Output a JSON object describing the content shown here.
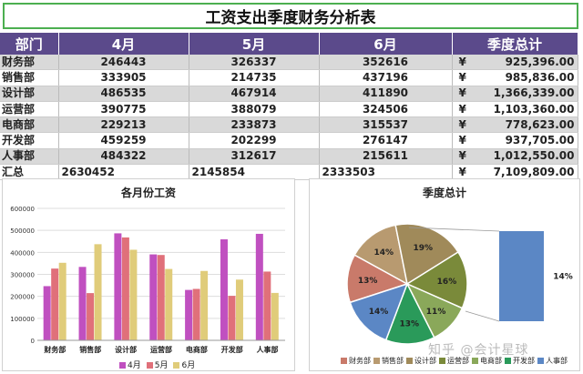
{
  "title": "工资支出季度财务分析表",
  "table": {
    "headers": [
      "部门",
      "4月",
      "5月",
      "6月",
      "季度总计"
    ],
    "currency_symbol": "¥",
    "rows": [
      {
        "dept": "财务部",
        "m4": "246443",
        "m5": "326337",
        "m6": "352616",
        "total": "925,396.00"
      },
      {
        "dept": "销售部",
        "m4": "333905",
        "m5": "214735",
        "m6": "437196",
        "total": "985,836.00"
      },
      {
        "dept": "设计部",
        "m4": "486535",
        "m5": "467914",
        "m6": "411890",
        "total": "1,366,339.00"
      },
      {
        "dept": "运营部",
        "m4": "390775",
        "m5": "388079",
        "m6": "324506",
        "total": "1,103,360.00"
      },
      {
        "dept": "电商部",
        "m4": "229213",
        "m5": "233873",
        "m6": "315537",
        "total": "778,623.00"
      },
      {
        "dept": "开发部",
        "m4": "459259",
        "m5": "202299",
        "m6": "276147",
        "total": "937,705.00"
      },
      {
        "dept": "人事部",
        "m4": "484322",
        "m5": "312617",
        "m6": "215611",
        "total": "1,012,550.00"
      }
    ],
    "summary": {
      "dept": "汇总",
      "m4": "2630452",
      "m5": "2145854",
      "m6": "2333503",
      "total": "7,109,809.00"
    }
  },
  "colors": {
    "header_bg": "#5b4a8b",
    "april": "#c050c0",
    "may": "#e0707a",
    "june": "#e0cc7a"
  },
  "watermark": "知乎 @会计星球",
  "chart_data": [
    {
      "type": "bar",
      "title": "各月份工资",
      "categories": [
        "财务部",
        "销售部",
        "设计部",
        "运营部",
        "电商部",
        "开发部",
        "人事部"
      ],
      "series": [
        {
          "name": "4月",
          "values": [
            246443,
            333905,
            486535,
            390775,
            229213,
            459259,
            484322
          ]
        },
        {
          "name": "5月",
          "values": [
            326337,
            214735,
            467914,
            388079,
            233873,
            202299,
            312617
          ]
        },
        {
          "name": "6月",
          "values": [
            352616,
            437196,
            411890,
            324506,
            315537,
            276147,
            215611
          ]
        }
      ],
      "ylim": [
        0,
        600000
      ],
      "yticks": [
        "0",
        "100000",
        "200000",
        "300000",
        "400000",
        "500000",
        "600000"
      ],
      "grid": true,
      "legend": "bottom"
    },
    {
      "type": "pie",
      "title": "季度总计",
      "labels": [
        "财务部",
        "销售部",
        "设计部",
        "运营部",
        "电商部",
        "开发部",
        "人事部"
      ],
      "values": [
        925396,
        985836,
        1366339,
        1103360,
        778623,
        937705,
        1012550
      ],
      "percent_labels": [
        "13%",
        "14%",
        "19%",
        "16%",
        "11%",
        "13%",
        "14%"
      ],
      "secondary_label": "14%",
      "colors": [
        "#c97a6a",
        "#b89a70",
        "#a08a5a",
        "#7a8a3a",
        "#8aa85a",
        "#2a9a5a",
        "#5b87c5"
      ],
      "legend": "bottom"
    }
  ]
}
